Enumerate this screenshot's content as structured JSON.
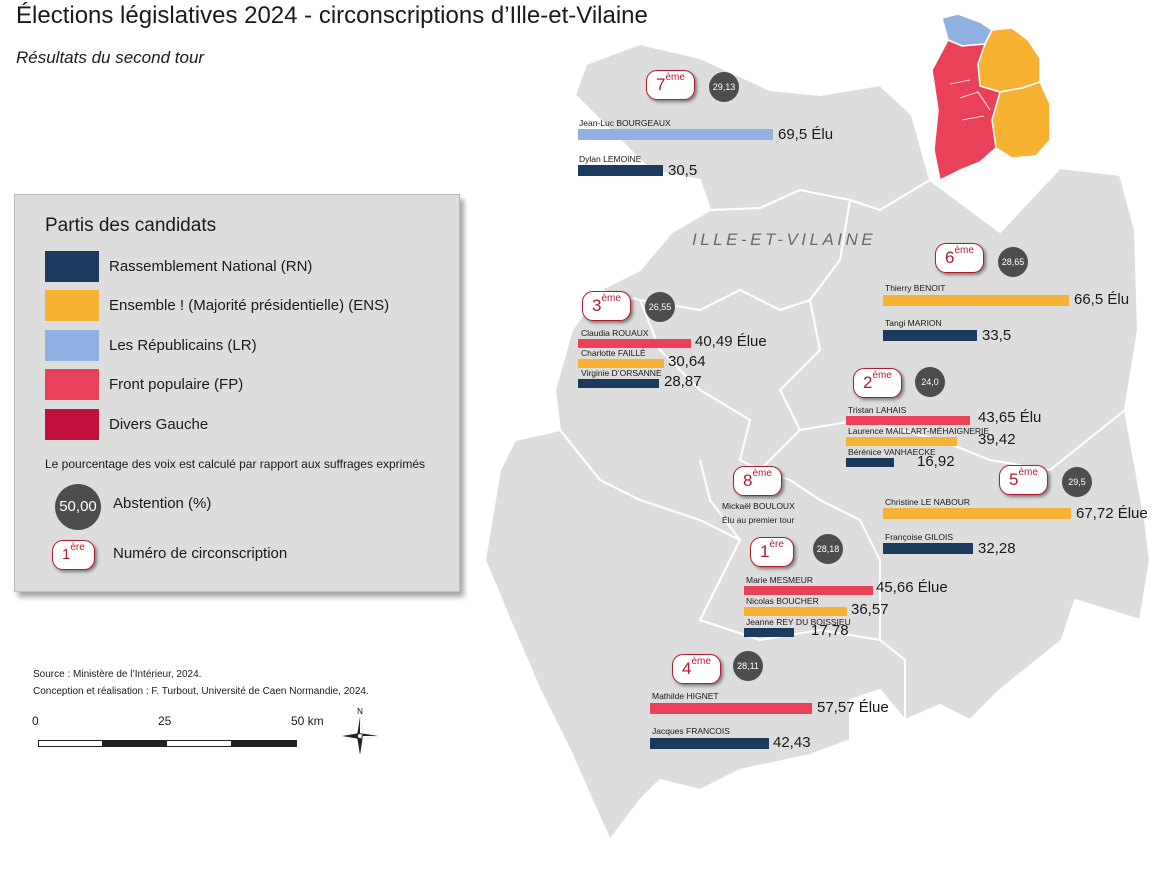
{
  "title": "Élections législatives 2024 - circonscriptions d’Ille-et-Vilaine",
  "subtitle": "Résultats du second tour",
  "region_label": "ILLE-ET-VILAINE",
  "colors": {
    "RN": "#1c3a5e",
    "ENS": "#f7b233",
    "LR": "#8fb2e2",
    "FP": "#e94159",
    "DVG": "#c2103c",
    "map_fill": "#dddddd",
    "map_stroke": "#ffffff",
    "abstention": "#4d4d4d",
    "badge": "#b01c2e"
  },
  "legend": {
    "title": "Partis des candidats",
    "parties": [
      {
        "code": "RN",
        "label": "Rassemblement National (RN)"
      },
      {
        "code": "ENS",
        "label": "Ensemble ! (Majorité présidentielle) (ENS)"
      },
      {
        "code": "LR",
        "label": "Les Républicains (LR)"
      },
      {
        "code": "FP",
        "label": "Front populaire (FP)"
      },
      {
        "code": "DVG",
        "label": "Divers Gauche"
      }
    ],
    "note": "Le pourcentage des voix est calculé par rapport aux suffrages exprimés",
    "abstention_example": "50,00",
    "abstention_label": "Abstention (%)",
    "badge_number": "1",
    "badge_sup": "ère",
    "badge_label": "Numéro de circonscription"
  },
  "constituencies": [
    {
      "number": "7",
      "sup": "ème",
      "abstention": "29,13",
      "candidates": [
        {
          "name": "Jean-Luc BOURGEAUX",
          "party": "LR",
          "pct": 69.5,
          "value": "69,5 Élu"
        },
        {
          "name": "Dylan LEMOINE",
          "party": "RN",
          "pct": 30.5,
          "value": "30,5"
        }
      ]
    },
    {
      "number": "6",
      "sup": "ème",
      "abstention": "28,65",
      "candidates": [
        {
          "name": "Thierry BENOIT",
          "party": "ENS",
          "pct": 66.5,
          "value": "66,5 Élu"
        },
        {
          "name": "Tangi MARION",
          "party": "RN",
          "pct": 33.5,
          "value": "33,5"
        }
      ]
    },
    {
      "number": "3",
      "sup": "ème",
      "abstention": "26,55",
      "candidates": [
        {
          "name": "Claudia ROUAUX",
          "party": "FP",
          "pct": 40.49,
          "value": "40,49 Élue"
        },
        {
          "name": "Charlotte FAILLÉ",
          "party": "ENS",
          "pct": 30.64,
          "value": "30,64"
        },
        {
          "name": "Virginie D’ORSANNE",
          "party": "RN",
          "pct": 28.87,
          "value": "28,87"
        }
      ]
    },
    {
      "number": "2",
      "sup": "ème",
      "abstention": "24,0",
      "candidates": [
        {
          "name": "Tristan LAHAIS",
          "party": "FP",
          "pct": 43.65,
          "value": "43,65 Élu"
        },
        {
          "name": "Laurence MAILLART-MÉHAIGNERIE",
          "party": "ENS",
          "pct": 39.42,
          "value": "39,42"
        },
        {
          "name": "Bérénice VANHAECKE",
          "party": "RN",
          "pct": 16.92,
          "value": "16,92"
        }
      ]
    },
    {
      "number": "8",
      "sup": "ème",
      "abstention": "",
      "first_round_name": "Mickaël BOULOUX",
      "first_round_note": "Élu au premier tour",
      "candidates": []
    },
    {
      "number": "5",
      "sup": "ème",
      "abstention": "29,5",
      "candidates": [
        {
          "name": "Christine LE NABOUR",
          "party": "ENS",
          "pct": 67.72,
          "value": "67,72 Élue"
        },
        {
          "name": "Françoise GILOIS",
          "party": "RN",
          "pct": 32.28,
          "value": "32,28"
        }
      ]
    },
    {
      "number": "1",
      "sup": "ère",
      "abstention": "28,18",
      "candidates": [
        {
          "name": "Marie MESMEUR",
          "party": "FP",
          "pct": 45.66,
          "value": "45,66 Élue"
        },
        {
          "name": "Nicolas BOUCHER",
          "party": "ENS",
          "pct": 36.57,
          "value": "36,57"
        },
        {
          "name": "Jeanne REY DU BOISSIEU",
          "party": "RN",
          "pct": 17.78,
          "value": "17,78"
        }
      ]
    },
    {
      "number": "4",
      "sup": "ème",
      "abstention": "28,11",
      "candidates": [
        {
          "name": "Mathilde HIGNET",
          "party": "FP",
          "pct": 57.57,
          "value": "57,57 Élue"
        },
        {
          "name": "Jacques FRANCOIS",
          "party": "RN",
          "pct": 42.43,
          "value": "42,43"
        }
      ]
    }
  ],
  "source_lines": [
    "Source : Ministère de l’Intérieur, 2024.",
    "Conception et réalisation : F. Turbout, Université de Caen Normandie, 2024."
  ],
  "scale_labels": [
    "0",
    "25",
    "50 km"
  ],
  "compass_label": "N"
}
